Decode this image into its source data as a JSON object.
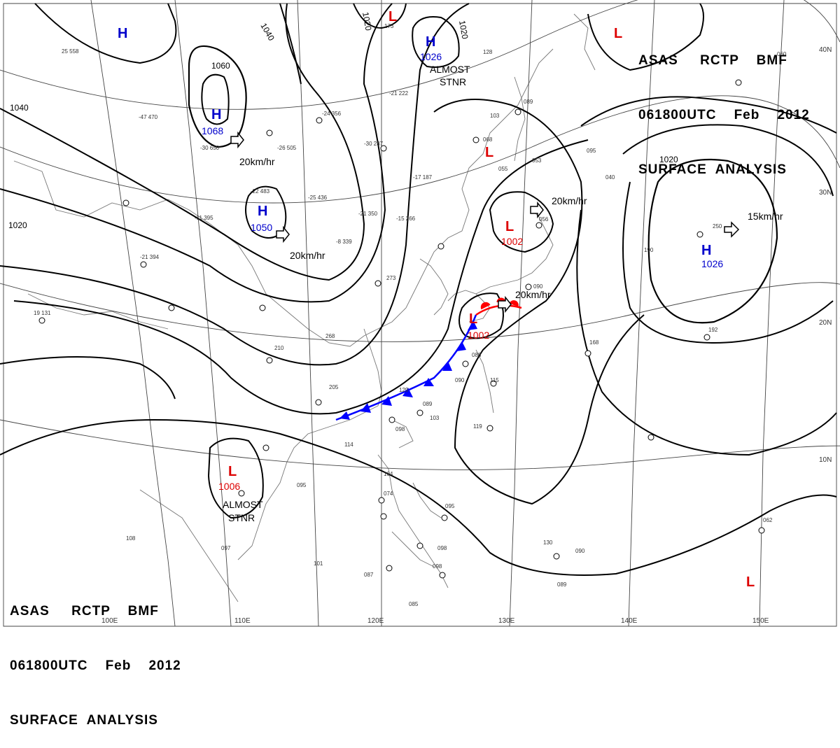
{
  "header_top": {
    "line1": "ASAS     RCTP    BMF",
    "line2": "061800UTC    Feb    2012",
    "line3": "SURFACE  ANALYSIS"
  },
  "header_bottom": {
    "line1": "ASAS     RCTP    BMF",
    "line2": "061800UTC    Feb    2012",
    "line3": "SURFACE  ANALYSIS"
  },
  "colors": {
    "high": "#0000cc",
    "low": "#dd0000",
    "isobar": "#000000",
    "cold_front": "#0000ff",
    "warm_front": "#ff0000",
    "grid": "#444444"
  },
  "longitude_labels": [
    "100E",
    "110E",
    "120E",
    "130E",
    "140E",
    "150E"
  ],
  "latitude_labels": [
    "40N",
    "30N",
    "20N",
    "10N"
  ],
  "isobar_labels": [
    "1060",
    "1040",
    "1040",
    "1020",
    "1020",
    "1020",
    "1020"
  ],
  "pressure_centers": [
    {
      "type": "H",
      "letter": "H"
    },
    {
      "type": "H",
      "letter": "H",
      "value": "1068",
      "motion": "20km/hr"
    },
    {
      "type": "H",
      "letter": "H",
      "value": "1050",
      "motion": "20km/hr"
    },
    {
      "type": "H",
      "letter": "H",
      "value": "1026",
      "note1": "ALMOST",
      "note2": "STNR"
    },
    {
      "type": "H",
      "letter": "H",
      "value": "1026",
      "motion": "15km/hr"
    },
    {
      "type": "L",
      "letter": "L"
    },
    {
      "type": "L",
      "letter": "L"
    },
    {
      "type": "L",
      "letter": "L"
    },
    {
      "type": "L",
      "letter": "L",
      "value": "1002",
      "motion": "20km/hr"
    },
    {
      "type": "L",
      "letter": "L",
      "value": "1002",
      "motion": "20km/hr"
    },
    {
      "type": "L",
      "letter": "L",
      "value": "1006",
      "note1": "ALMOST",
      "note2": "STNR"
    },
    {
      "type": "L",
      "letter": "L"
    }
  ],
  "station_obs": [
    "25 558",
    "-47 470",
    "-30 650",
    "-26 505",
    "-22 483",
    "-25 436",
    "-24 356",
    "-30 287",
    "-21 350",
    "-17 187",
    "-15 266",
    "-8 339",
    "-21 222",
    "173",
    "128",
    "089",
    "103",
    "068",
    "055",
    "053",
    "095",
    "040",
    "060",
    "056",
    "090",
    "250",
    "190",
    "192",
    "168",
    "088",
    "090",
    "115",
    "210",
    "268",
    "205",
    "129",
    "089",
    "103",
    "098",
    "114",
    "119",
    "095",
    "104",
    "074",
    "095",
    "098",
    "130",
    "090",
    "101",
    "087",
    "098",
    "089",
    "085",
    "062",
    "097",
    "108",
    "273",
    "19 131",
    "-21 394",
    "-11 395"
  ]
}
